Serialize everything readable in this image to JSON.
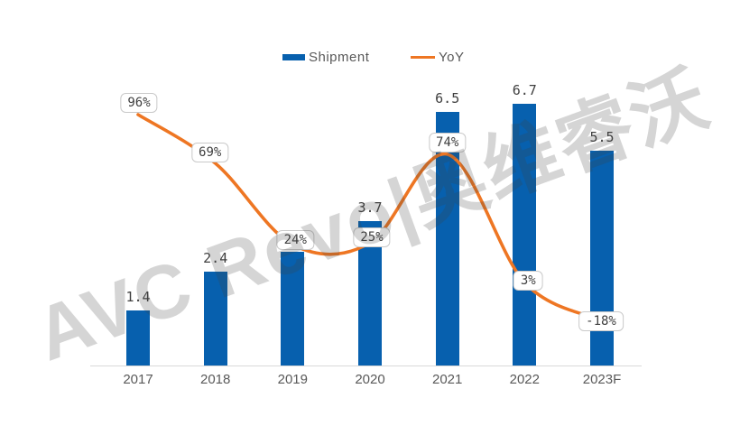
{
  "watermark": {
    "text": "AVC Revo|奥维睿沃"
  },
  "legend": {
    "items": [
      {
        "label": "Shipment",
        "swatch": "bar-swatch",
        "color": "#0760AE"
      },
      {
        "label": "YoY",
        "swatch": "line-swatch",
        "color": "#EE7623"
      }
    ],
    "position": "top-center"
  },
  "chart_data": {
    "type": "bar+line",
    "title": "",
    "categories": [
      "2017",
      "2018",
      "2019",
      "2020",
      "2021",
      "2022",
      "2023F"
    ],
    "series": [
      {
        "name": "Shipment",
        "type": "bar",
        "values": [
          1.4,
          2.4,
          2.9,
          3.7,
          6.5,
          6.7,
          5.5
        ],
        "visible_labels": [
          "1.4",
          "2.4",
          "",
          "3.7",
          "6.5",
          "6.7",
          "5.5"
        ],
        "color": "#0760AE"
      },
      {
        "name": "YoY",
        "type": "line",
        "values_percent": [
          96,
          69,
          24,
          25,
          74,
          3,
          -18
        ],
        "labels": [
          "96%",
          "69%",
          "24%",
          "25%",
          "74%",
          "3%",
          "-18%"
        ],
        "color": "#EE7623",
        "label_style": "rounded-box"
      }
    ],
    "xlabel": "",
    "ylabel": "",
    "grid": false,
    "legend_position": "top",
    "axis_line_color": "#D9D9D9",
    "text_color": "#595959",
    "value_label_color": "#3F3F3F"
  }
}
